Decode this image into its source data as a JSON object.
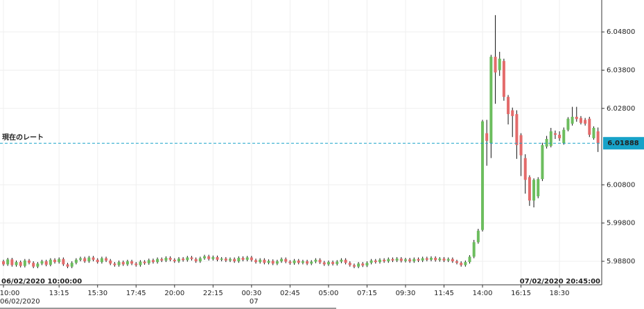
{
  "chart_data": {
    "type": "candlestick",
    "categories": [
      "10:00",
      null,
      null,
      null,
      null,
      null,
      null,
      null,
      null,
      null,
      null,
      null,
      null,
      "13:15",
      null,
      null,
      null,
      null,
      null,
      null,
      null,
      null,
      "15:30",
      null,
      null,
      null,
      null,
      null,
      null,
      null,
      null,
      "17:45",
      null,
      null,
      null,
      null,
      null,
      null,
      null,
      null,
      "20:00",
      null,
      null,
      null,
      null,
      null,
      null,
      null,
      null,
      "22:15",
      null,
      null,
      null,
      null,
      null,
      null,
      null,
      null,
      "00:30",
      null,
      null,
      null,
      null,
      null,
      null,
      null,
      null,
      "02:45",
      null,
      null,
      null,
      null,
      null,
      null,
      null,
      null,
      "05:00",
      null,
      null,
      null,
      null,
      null,
      null,
      null,
      null,
      "07:15",
      null,
      null,
      null,
      null,
      null,
      null,
      null,
      null,
      "09:30",
      null,
      null,
      null,
      null,
      null,
      null,
      null,
      null,
      "11:45",
      null,
      null,
      null,
      null,
      null,
      null,
      null,
      null,
      "14:00",
      null,
      null,
      null,
      null,
      null,
      null,
      null,
      null,
      "16:15",
      null,
      null,
      null,
      null,
      null,
      null,
      null,
      null,
      "18:30",
      null,
      null,
      null,
      null,
      null,
      null,
      null,
      null,
      null
    ],
    "dates": [
      "06/02/2020",
      null,
      null,
      null,
      null,
      null,
      null,
      null,
      null,
      null,
      null,
      null,
      null,
      null,
      null,
      null,
      null,
      null,
      null,
      null,
      null,
      null,
      null,
      null,
      null,
      null,
      null,
      null,
      null,
      null,
      null,
      null,
      null,
      null,
      null,
      null,
      null,
      null,
      null,
      null,
      null,
      null,
      null,
      null,
      null,
      null,
      null,
      null,
      null,
      null,
      null,
      null,
      null,
      null,
      null,
      null,
      null,
      null,
      "07",
      null,
      null,
      null,
      null,
      null,
      null,
      null,
      null,
      null,
      null,
      null,
      null,
      null,
      null,
      null,
      null,
      null,
      null,
      null,
      null,
      null,
      null,
      null,
      null,
      null,
      null,
      null,
      null,
      null,
      null,
      null,
      null,
      null,
      null,
      null,
      null,
      null,
      null,
      null,
      null,
      null,
      null,
      null,
      null,
      null,
      null,
      null,
      null,
      null,
      null,
      null,
      null,
      null,
      null,
      null,
      null,
      null,
      null,
      null,
      null,
      null,
      null,
      null,
      null,
      null,
      null,
      null,
      null,
      null,
      null,
      null,
      null,
      null,
      null,
      null,
      null,
      null,
      null,
      null,
      null,
      null
    ],
    "open": [
      5.988,
      5.9872,
      5.9885,
      5.987,
      5.9878,
      5.9868,
      5.9882,
      5.9876,
      5.9866,
      5.9874,
      5.988,
      5.9871,
      5.9884,
      5.9878,
      5.9886,
      5.9872,
      5.9866,
      5.9876,
      5.9884,
      5.9888,
      5.988,
      5.989,
      5.9884,
      5.9878,
      5.9888,
      5.9882,
      5.9874,
      5.987,
      5.9878,
      5.9872,
      5.988,
      5.9874,
      5.987,
      5.9879,
      5.9875,
      5.9883,
      5.9878,
      5.9886,
      5.9882,
      5.9889,
      5.9884,
      5.988,
      5.9887,
      5.9883,
      5.989,
      5.9886,
      5.988,
      5.9888,
      5.9893,
      5.9886,
      5.9891,
      5.9884,
      5.9887,
      5.9882,
      5.9886,
      5.988,
      5.9889,
      5.9884,
      5.989,
      5.9883,
      5.9878,
      5.9884,
      5.9876,
      5.9881,
      5.9874,
      5.988,
      5.9886,
      5.9879,
      5.9875,
      5.9882,
      5.9876,
      5.988,
      5.9874,
      5.9879,
      5.9884,
      5.9877,
      5.9872,
      5.9878,
      5.9873,
      5.9879,
      5.9884,
      5.9876,
      5.987,
      5.9866,
      5.9874,
      5.9869,
      5.9876,
      5.9882,
      5.9878,
      5.9884,
      5.988,
      5.9886,
      5.9882,
      5.9887,
      5.9881,
      5.9885,
      5.988,
      5.9886,
      5.9882,
      5.9888,
      5.9884,
      5.9889,
      5.9883,
      5.9887,
      5.9882,
      5.9886,
      5.988,
      5.9876,
      5.987,
      5.9878,
      5.9892,
      5.993,
      5.9962,
      6.0215,
      6.0189,
      6.0415,
      6.038,
      6.0404,
      6.031,
      6.0275,
      6.0265,
      6.021,
      6.015,
      6.01,
      6.0039,
      6.005,
      6.0095,
      6.018,
      6.0182,
      6.0215,
      6.0211,
      6.0189,
      6.0224,
      6.024,
      6.0258,
      6.0255,
      6.025,
      6.0253,
      6.0202,
      6.022
    ],
    "high": [
      5.9884,
      5.9889,
      5.9889,
      5.9882,
      5.9882,
      5.9886,
      5.9886,
      5.988,
      5.9878,
      5.9884,
      5.9884,
      5.9888,
      5.9888,
      5.989,
      5.989,
      5.9876,
      5.988,
      5.9888,
      5.9892,
      5.9892,
      5.9894,
      5.9894,
      5.9888,
      5.9892,
      5.9892,
      5.9886,
      5.9878,
      5.9882,
      5.9882,
      5.9884,
      5.9884,
      5.9878,
      5.9883,
      5.9883,
      5.9887,
      5.9887,
      5.989,
      5.989,
      5.9893,
      5.9893,
      5.9888,
      5.9891,
      5.9891,
      5.9894,
      5.9894,
      5.989,
      5.9892,
      5.9897,
      5.9897,
      5.9895,
      5.9895,
      5.9891,
      5.9891,
      5.989,
      5.989,
      5.9893,
      5.9893,
      5.9894,
      5.9894,
      5.9887,
      5.9888,
      5.9888,
      5.9885,
      5.9885,
      5.9884,
      5.989,
      5.989,
      5.9883,
      5.9886,
      5.9886,
      5.9884,
      5.9884,
      5.9883,
      5.9888,
      5.9888,
      5.9881,
      5.9882,
      5.9882,
      5.9883,
      5.9888,
      5.9888,
      5.988,
      5.9874,
      5.9878,
      5.9878,
      5.988,
      5.9886,
      5.9886,
      5.9888,
      5.9888,
      5.989,
      5.989,
      5.9891,
      5.9891,
      5.9889,
      5.9889,
      5.989,
      5.989,
      5.9892,
      5.9892,
      5.9893,
      5.9893,
      5.9891,
      5.9891,
      5.989,
      5.989,
      5.9884,
      5.988,
      5.9882,
      5.9896,
      5.9936,
      5.9965,
      6.025,
      6.025,
      6.042,
      6.0524,
      6.0428,
      6.041,
      6.0315,
      6.0282,
      6.0275,
      6.0215,
      6.016,
      6.0105,
      6.0097,
      6.01,
      6.019,
      6.0208,
      6.0229,
      6.0222,
      6.022,
      6.023,
      6.0257,
      6.0284,
      6.0284,
      6.026,
      6.0255,
      6.0258,
      6.0233,
      6.023
    ],
    "low": [
      5.9868,
      5.9868,
      5.9866,
      5.9866,
      5.9864,
      5.9864,
      5.9872,
      5.9862,
      5.9862,
      5.987,
      5.9867,
      5.9867,
      5.9874,
      5.9874,
      5.9868,
      5.9862,
      5.9862,
      5.9872,
      5.988,
      5.9876,
      5.9876,
      5.988,
      5.9874,
      5.9874,
      5.9878,
      5.987,
      5.9866,
      5.9866,
      5.9868,
      5.9868,
      5.987,
      5.9866,
      5.9866,
      5.9871,
      5.9871,
      5.9874,
      5.9874,
      5.9878,
      5.9878,
      5.988,
      5.9876,
      5.9876,
      5.9879,
      5.9879,
      5.9882,
      5.9876,
      5.9876,
      5.9884,
      5.9882,
      5.9882,
      5.988,
      5.988,
      5.9878,
      5.9878,
      5.9876,
      5.9876,
      5.988,
      5.988,
      5.9879,
      5.9874,
      5.9874,
      5.9872,
      5.9872,
      5.987,
      5.987,
      5.9876,
      5.9875,
      5.9871,
      5.9871,
      5.9872,
      5.9872,
      5.987,
      5.987,
      5.9875,
      5.9873,
      5.9868,
      5.9868,
      5.9869,
      5.9869,
      5.9875,
      5.9872,
      5.9866,
      5.9862,
      5.9862,
      5.9865,
      5.9865,
      5.9872,
      5.9874,
      5.9874,
      5.9876,
      5.9876,
      5.9878,
      5.9878,
      5.9877,
      5.9877,
      5.9876,
      5.9876,
      5.9878,
      5.9878,
      5.988,
      5.988,
      5.9879,
      5.9879,
      5.9878,
      5.9878,
      5.9876,
      5.9872,
      5.9866,
      5.9866,
      5.9874,
      5.9888,
      5.9926,
      5.9958,
      6.013,
      6.015,
      6.0292,
      6.0365,
      6.03,
      6.0238,
      6.0205,
      6.0148,
      6.0103,
      6.0057,
      6.0025,
      6.0021,
      6.0045,
      6.009,
      6.0175,
      6.0178,
      6.02,
      6.0195,
      6.0185,
      6.022,
      6.0235,
      6.0245,
      6.0238,
      6.0235,
      6.0205,
      6.0198,
      6.0166
    ],
    "close": [
      5.9872,
      5.9885,
      5.987,
      5.9878,
      5.9868,
      5.9882,
      5.9876,
      5.9866,
      5.9874,
      5.988,
      5.9871,
      5.9884,
      5.9878,
      5.9886,
      5.9872,
      5.9866,
      5.9876,
      5.9884,
      5.9888,
      5.988,
      5.989,
      5.9884,
      5.9878,
      5.9888,
      5.9882,
      5.9874,
      5.987,
      5.9878,
      5.9872,
      5.988,
      5.9874,
      5.987,
      5.9879,
      5.9875,
      5.9883,
      5.9878,
      5.9886,
      5.9882,
      5.9889,
      5.9884,
      5.988,
      5.9887,
      5.9883,
      5.989,
      5.9886,
      5.988,
      5.9888,
      5.9893,
      5.9886,
      5.9891,
      5.9884,
      5.9887,
      5.9882,
      5.9886,
      5.988,
      5.9889,
      5.9884,
      5.989,
      5.9883,
      5.9878,
      5.9884,
      5.9876,
      5.9881,
      5.9874,
      5.988,
      5.9886,
      5.9879,
      5.9875,
      5.9882,
      5.9876,
      5.988,
      5.9874,
      5.9879,
      5.9884,
      5.9877,
      5.9872,
      5.9878,
      5.9873,
      5.9879,
      5.9884,
      5.9876,
      5.987,
      5.9866,
      5.9874,
      5.9869,
      5.9876,
      5.9882,
      5.9878,
      5.9884,
      5.988,
      5.9886,
      5.9882,
      5.9887,
      5.9881,
      5.9885,
      5.988,
      5.9886,
      5.9882,
      5.9888,
      5.9884,
      5.9889,
      5.9883,
      5.9887,
      5.9882,
      5.9886,
      5.988,
      5.9876,
      5.987,
      5.9878,
      5.9892,
      5.993,
      5.996,
      6.0246,
      6.0195,
      6.0415,
      6.0374,
      6.041,
      6.031,
      6.0265,
      6.026,
      6.0184,
      6.0157,
      6.0093,
      6.0039,
      6.0093,
      6.0095,
      6.0184,
      6.02,
      6.022,
      6.0211,
      6.0202,
      6.0224,
      6.0253,
      6.0258,
      6.0252,
      6.0242,
      6.024,
      6.0211,
      6.0229,
      6.01888
    ],
    "up_color": "#6cbd5e",
    "down_color": "#e36b6b",
    "ylim": [
      5.98185,
      6.05635
    ],
    "yticks": [
      {
        "value": 5.988,
        "label": "5.98800"
      },
      {
        "value": 5.998,
        "label": "5.99800"
      },
      {
        "value": 6.008,
        "label": "6.00800"
      },
      {
        "value": 6.028,
        "label": "6.02800"
      },
      {
        "value": 6.038,
        "label": "6.03800"
      },
      {
        "value": 6.048,
        "label": "6.04800"
      }
    ],
    "grid": true,
    "range_start": "06/02/2020 10:00:00",
    "range_end": "07/02/2020 20:45:00",
    "current_rate": {
      "label": "現在のレート",
      "value": 6.01888,
      "color": "#17a2c8"
    }
  }
}
